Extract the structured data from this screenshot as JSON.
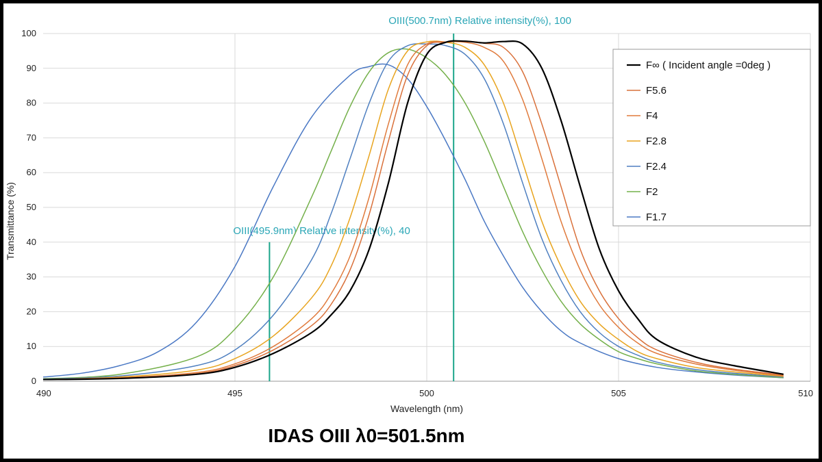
{
  "chart_data": {
    "type": "line",
    "title": "IDAS  OIII   λ0=501.5nm",
    "xlabel": "Wavelength (nm)",
    "ylabel": "Transmittance (%)",
    "xlim": [
      490,
      510
    ],
    "ylim": [
      0,
      100
    ],
    "x_ticks": [
      490,
      495,
      500,
      505,
      510
    ],
    "x_tick_labels": [
      "490",
      "495",
      "500",
      "505",
      "510"
    ],
    "y_ticks": [
      0,
      10,
      20,
      30,
      40,
      50,
      60,
      70,
      80,
      90,
      100
    ],
    "y_tick_labels": [
      "0",
      "10",
      "20",
      "30",
      "40",
      "50",
      "60",
      "70",
      "80",
      "90",
      "100"
    ],
    "grid": true,
    "legend_position": "top-right",
    "markers": [
      {
        "x": 500.7,
        "height": 100,
        "label": "OIII(500.7nm)   Relative intensity(%), 100",
        "color": "#1aa58a",
        "label_color": "#2aa6b6"
      },
      {
        "x": 495.9,
        "height": 40,
        "label": "OIII(495.9nm)   Relative intensity(%), 40",
        "color": "#1aa58a",
        "label_color": "#2aa6b6"
      }
    ],
    "series": [
      {
        "name": "F∞ ( Incident angle =0deg )",
        "color": "#000000",
        "points": [
          [
            490,
            0.5
          ],
          [
            492,
            0.8
          ],
          [
            494,
            2
          ],
          [
            495,
            4
          ],
          [
            496,
            8
          ],
          [
            497,
            14
          ],
          [
            497.5,
            19
          ],
          [
            498,
            26
          ],
          [
            498.5,
            38
          ],
          [
            499,
            57
          ],
          [
            499.5,
            80
          ],
          [
            500,
            94
          ],
          [
            500.5,
            97.5
          ],
          [
            501,
            97.8
          ],
          [
            501.5,
            97.3
          ],
          [
            502,
            97.7
          ],
          [
            502.5,
            97
          ],
          [
            503,
            90
          ],
          [
            503.5,
            75
          ],
          [
            504,
            56
          ],
          [
            504.5,
            38
          ],
          [
            505,
            26
          ],
          [
            505.5,
            18
          ],
          [
            506,
            12
          ],
          [
            507,
            7
          ],
          [
            508,
            4.5
          ],
          [
            509.3,
            2
          ]
        ]
      },
      {
        "name": "F5.6",
        "color": "#d9703a",
        "points": [
          [
            490,
            0.5
          ],
          [
            492,
            0.9
          ],
          [
            494,
            2.2
          ],
          [
            495,
            4.5
          ],
          [
            496,
            9
          ],
          [
            497,
            16
          ],
          [
            497.5,
            22
          ],
          [
            498,
            32
          ],
          [
            498.5,
            48
          ],
          [
            499,
            69
          ],
          [
            499.5,
            88
          ],
          [
            500,
            96.5
          ],
          [
            500.5,
            97.5
          ],
          [
            501,
            97.8
          ],
          [
            501.5,
            97.2
          ],
          [
            502,
            96
          ],
          [
            502.5,
            89
          ],
          [
            503,
            74
          ],
          [
            503.5,
            56
          ],
          [
            504,
            38
          ],
          [
            504.5,
            26
          ],
          [
            505,
            18
          ],
          [
            505.5,
            12.5
          ],
          [
            506,
            9
          ],
          [
            507,
            5.5
          ],
          [
            508,
            3.5
          ],
          [
            509.3,
            1.8
          ]
        ]
      },
      {
        "name": "F4",
        "color": "#e07a3c",
        "points": [
          [
            490,
            0.5
          ],
          [
            492,
            1
          ],
          [
            494,
            2.5
          ],
          [
            495,
            5
          ],
          [
            496,
            10
          ],
          [
            497,
            18
          ],
          [
            497.5,
            25
          ],
          [
            498,
            36
          ],
          [
            498.5,
            53
          ],
          [
            499,
            74
          ],
          [
            499.5,
            91
          ],
          [
            500,
            97
          ],
          [
            500.5,
            97.6
          ],
          [
            501,
            97.5
          ],
          [
            501.5,
            96
          ],
          [
            502,
            92
          ],
          [
            502.5,
            81
          ],
          [
            503,
            64
          ],
          [
            503.5,
            46
          ],
          [
            504,
            32
          ],
          [
            504.5,
            22
          ],
          [
            505,
            15.5
          ],
          [
            505.5,
            11
          ],
          [
            506,
            8
          ],
          [
            507,
            5
          ],
          [
            508,
            3.2
          ],
          [
            509.3,
            1.6
          ]
        ]
      },
      {
        "name": "F2.8",
        "color": "#e8a41e",
        "points": [
          [
            490,
            0.5
          ],
          [
            492,
            1.2
          ],
          [
            494,
            3.2
          ],
          [
            495,
            6.5
          ],
          [
            496,
            13
          ],
          [
            497,
            24
          ],
          [
            497.5,
            33
          ],
          [
            498,
            47
          ],
          [
            498.5,
            65
          ],
          [
            499,
            84
          ],
          [
            499.5,
            95
          ],
          [
            500,
            97.6
          ],
          [
            500.5,
            97.5
          ],
          [
            501,
            96
          ],
          [
            501.5,
            91
          ],
          [
            502,
            80
          ],
          [
            502.5,
            63
          ],
          [
            503,
            46
          ],
          [
            503.5,
            33
          ],
          [
            504,
            23
          ],
          [
            504.5,
            16.5
          ],
          [
            505,
            12
          ],
          [
            505.5,
            8.5
          ],
          [
            506,
            6.5
          ],
          [
            507,
            4
          ],
          [
            508,
            2.7
          ],
          [
            509.3,
            1.4
          ]
        ]
      },
      {
        "name": "F2.4",
        "color": "#4e7fc0",
        "points": [
          [
            490,
            0.6
          ],
          [
            492,
            1.5
          ],
          [
            494,
            4.5
          ],
          [
            495,
            9
          ],
          [
            496,
            19
          ],
          [
            497,
            35
          ],
          [
            497.5,
            48
          ],
          [
            498,
            64
          ],
          [
            498.5,
            80
          ],
          [
            499,
            92
          ],
          [
            499.5,
            96.5
          ],
          [
            500,
            97
          ],
          [
            500.5,
            96.5
          ],
          [
            501,
            94
          ],
          [
            501.5,
            87
          ],
          [
            502,
            74
          ],
          [
            502.5,
            57
          ],
          [
            503,
            41
          ],
          [
            503.5,
            29
          ],
          [
            504,
            20
          ],
          [
            504.5,
            14
          ],
          [
            505,
            10
          ],
          [
            505.5,
            7.5
          ],
          [
            506,
            5.5
          ],
          [
            507,
            3.4
          ],
          [
            508,
            2.3
          ],
          [
            509.3,
            1.2
          ]
        ]
      },
      {
        "name": "F2",
        "color": "#74b04a",
        "points": [
          [
            490,
            0.7
          ],
          [
            492,
            2
          ],
          [
            494,
            7
          ],
          [
            495,
            15
          ],
          [
            496,
            30
          ],
          [
            497,
            53
          ],
          [
            497.5,
            66
          ],
          [
            498,
            79
          ],
          [
            498.5,
            89
          ],
          [
            499,
            94.5
          ],
          [
            499.5,
            95.5
          ],
          [
            500,
            93
          ],
          [
            500.5,
            88
          ],
          [
            501,
            80
          ],
          [
            501.5,
            69
          ],
          [
            502,
            56
          ],
          [
            502.5,
            43
          ],
          [
            503,
            32
          ],
          [
            503.5,
            23
          ],
          [
            504,
            16.5
          ],
          [
            504.5,
            12
          ],
          [
            505,
            8.5
          ],
          [
            505.5,
            6.5
          ],
          [
            506,
            5
          ],
          [
            507,
            3
          ],
          [
            508,
            2
          ],
          [
            509.3,
            1
          ]
        ]
      },
      {
        "name": "F1.7",
        "color": "#4a78c4",
        "points": [
          [
            490,
            1.2
          ],
          [
            491,
            2.3
          ],
          [
            492,
            4.5
          ],
          [
            493,
            8.5
          ],
          [
            494,
            17
          ],
          [
            495,
            33
          ],
          [
            496,
            56
          ],
          [
            497,
            76
          ],
          [
            498,
            88
          ],
          [
            498.5,
            90.5
          ],
          [
            499,
            91
          ],
          [
            499.5,
            87
          ],
          [
            500,
            79
          ],
          [
            500.5,
            69
          ],
          [
            501,
            58
          ],
          [
            501.5,
            46
          ],
          [
            502,
            36
          ],
          [
            502.5,
            27
          ],
          [
            503,
            20
          ],
          [
            503.5,
            14.5
          ],
          [
            504,
            11
          ],
          [
            505,
            6.5
          ],
          [
            506,
            4
          ],
          [
            507,
            2.7
          ],
          [
            508,
            1.8
          ],
          [
            509.3,
            1
          ]
        ]
      }
    ]
  }
}
